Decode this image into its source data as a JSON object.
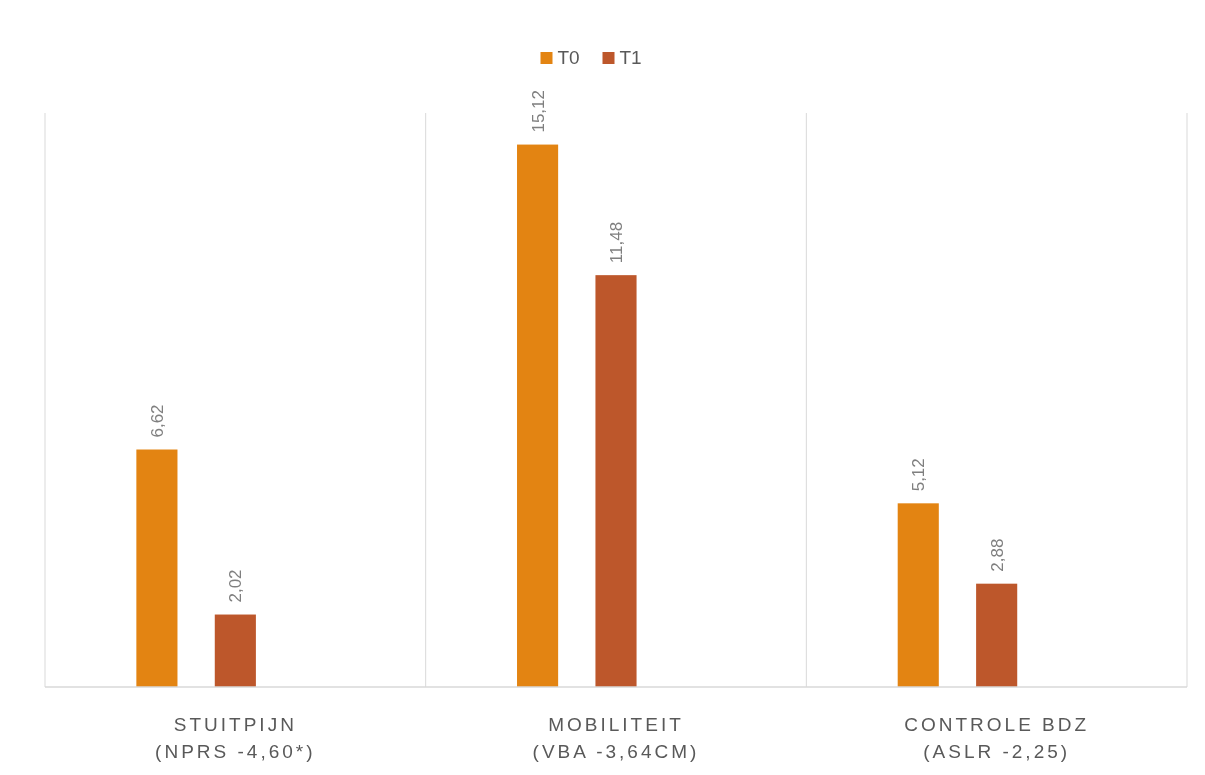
{
  "chart_data": {
    "type": "bar",
    "categories": [
      "STUITPIJN\n(NPRS -4,60*)",
      "MOBILITEIT\n(VBA -3,64CM)",
      "CONTROLE BDZ\n(ASLR -2,25)"
    ],
    "series": [
      {
        "name": "T0",
        "color": "#e38412",
        "values": [
          6.62,
          15.12,
          5.12
        ],
        "value_labels": [
          "6,62",
          "15,12",
          "5,12"
        ]
      },
      {
        "name": "T1",
        "color": "#bd572b",
        "values": [
          2.02,
          11.48,
          2.88
        ],
        "value_labels": [
          "2,02",
          "11,48",
          "2,88"
        ]
      }
    ],
    "ylim": [
      0,
      16
    ],
    "grid": "x",
    "legend": "top"
  }
}
